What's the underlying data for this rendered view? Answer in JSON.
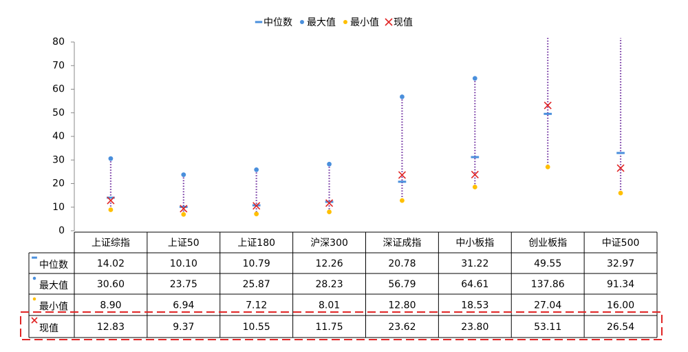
{
  "chart_data": {
    "type": "range_table",
    "categories": [
      "上证综指",
      "上证50",
      "上证180",
      "沪深300",
      "深证成指",
      "中小板指",
      "创业板指",
      "中证500"
    ],
    "series": [
      {
        "name": "中位数",
        "color": "#4a8fdc",
        "marker": "dash",
        "values": [
          14.02,
          10.1,
          10.79,
          12.26,
          20.78,
          31.22,
          49.55,
          32.97
        ],
        "value_labels": [
          "14.02",
          "10.10",
          "10.79",
          "12.26",
          "20.78",
          "31.22",
          "49.55",
          "32.97"
        ]
      },
      {
        "name": "最大值",
        "color": "#4a8fdc",
        "marker": "circle",
        "values": [
          30.6,
          23.75,
          25.87,
          28.23,
          56.79,
          64.61,
          137.86,
          91.34
        ],
        "value_labels": [
          "30.60",
          "23.75",
          "25.87",
          "28.23",
          "56.79",
          "64.61",
          "137.86",
          "91.34"
        ]
      },
      {
        "name": "最小值",
        "color": "#ffbf00",
        "marker": "circle",
        "values": [
          8.9,
          6.94,
          7.12,
          8.01,
          12.8,
          18.53,
          27.04,
          16
        ],
        "value_labels": [
          "8.90",
          "6.94",
          "7.12",
          "8.01",
          "12.80",
          "18.53",
          "27.04",
          "16.00"
        ]
      },
      {
        "name": "现值",
        "color": "#e02424",
        "marker": "x",
        "values": [
          12.83,
          9.37,
          10.55,
          11.75,
          23.62,
          23.8,
          53.11,
          26.54
        ],
        "value_labels": [
          "12.83",
          "9.37",
          "10.55",
          "11.75",
          "23.62",
          "23.80",
          "53.11",
          "26.54"
        ]
      }
    ],
    "range_line_color": "#7030a0",
    "highlight_color": "#e02424",
    "ylim": [
      0,
      80
    ],
    "yticks": [
      0,
      10,
      20,
      30,
      40,
      50,
      60,
      70,
      80
    ],
    "legend": "top"
  }
}
